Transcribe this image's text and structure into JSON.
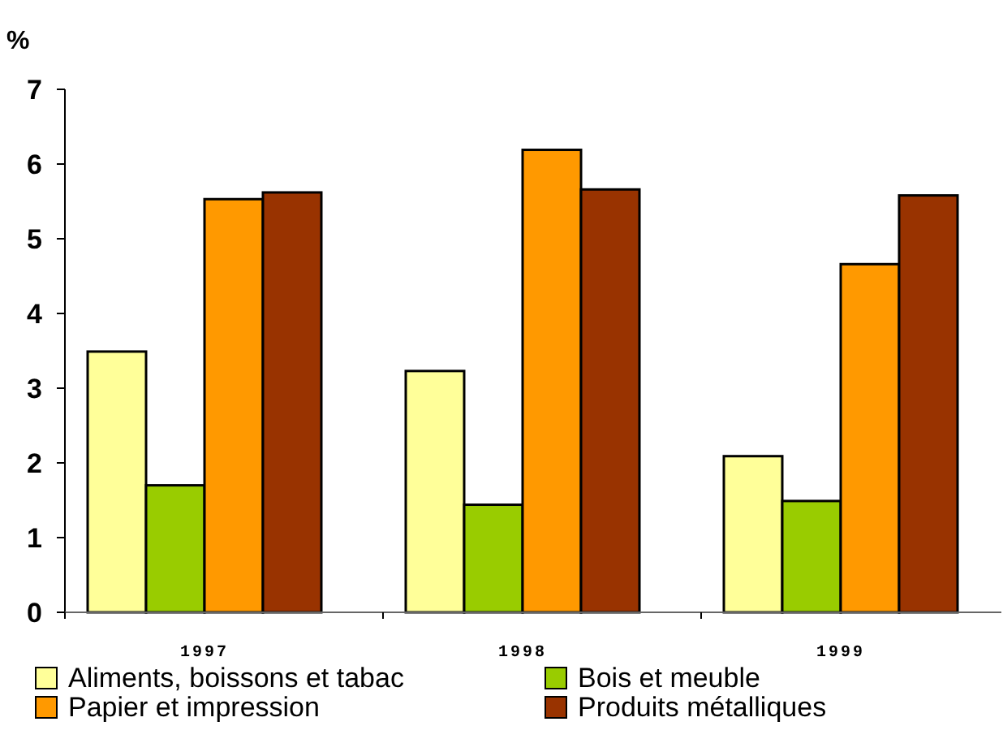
{
  "chart_data": {
    "type": "bar",
    "ylabel": "%",
    "categories": [
      "1997",
      "1998",
      "1999"
    ],
    "series": [
      {
        "name": "Aliments, boissons et tabac",
        "color": "#ffff99",
        "values": [
          3.49,
          3.23,
          2.09
        ]
      },
      {
        "name": "Bois et meuble",
        "color": "#99cc00",
        "values": [
          1.7,
          1.44,
          1.49
        ]
      },
      {
        "name": "Papier et impression",
        "color": "#ff9900",
        "values": [
          5.53,
          6.19,
          4.66
        ]
      },
      {
        "name": "Produits métalliques",
        "color": "#993300",
        "values": [
          5.62,
          5.66,
          5.58
        ]
      }
    ],
    "ylim": [
      0,
      7
    ],
    "yticks": [
      0,
      1,
      2,
      3,
      4,
      5,
      6,
      7
    ],
    "grid": false,
    "legend": "bottom"
  }
}
